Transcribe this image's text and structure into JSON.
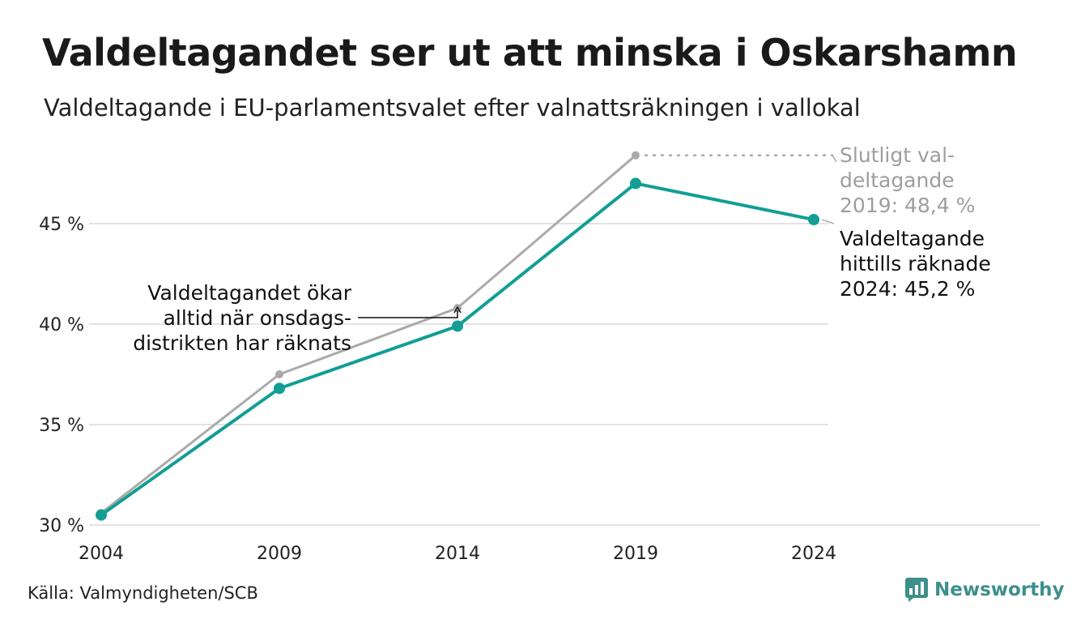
{
  "title": "Valdeltagandet ser ut att minska i Oskarshamn",
  "subtitle": "Valdeltagande i EU-parlamentsvalet efter valnattsräkningen i vallokal",
  "source": "Källa: Valmyndigheten/SCB",
  "brand": "Newsworthy",
  "colors": {
    "final": "#aaaaaa",
    "counted": "#129e94",
    "grid": "#e3e3e3",
    "brand": "#3d8f8a"
  },
  "chart_data": {
    "type": "line",
    "x": [
      2004,
      2009,
      2014,
      2019,
      2024
    ],
    "ylim": [
      30,
      48.5
    ],
    "yticks": [
      30,
      35,
      40,
      45
    ],
    "ytick_labels": [
      "30 %",
      "35 %",
      "40 %",
      "45 %"
    ],
    "xtick_labels": [
      "2004",
      "2009",
      "2014",
      "2019",
      "2024"
    ],
    "grid": true,
    "series": [
      {
        "key": "final",
        "values": [
          30.6,
          37.5,
          40.8,
          48.4,
          null
        ]
      },
      {
        "key": "counted",
        "values": [
          30.5,
          36.8,
          39.9,
          47.0,
          45.2
        ]
      }
    ],
    "annotations": {
      "final_label": [
        "Slutligt val-",
        "deltagande",
        "2019: 48,4 %"
      ],
      "counted_label": [
        "Valdeltagande",
        "hittills räknade",
        "2024: 45,2 %"
      ],
      "note": [
        "Valdeltagandet ökar",
        "alltid när onsdags-",
        "distrikten har räknats"
      ]
    }
  }
}
